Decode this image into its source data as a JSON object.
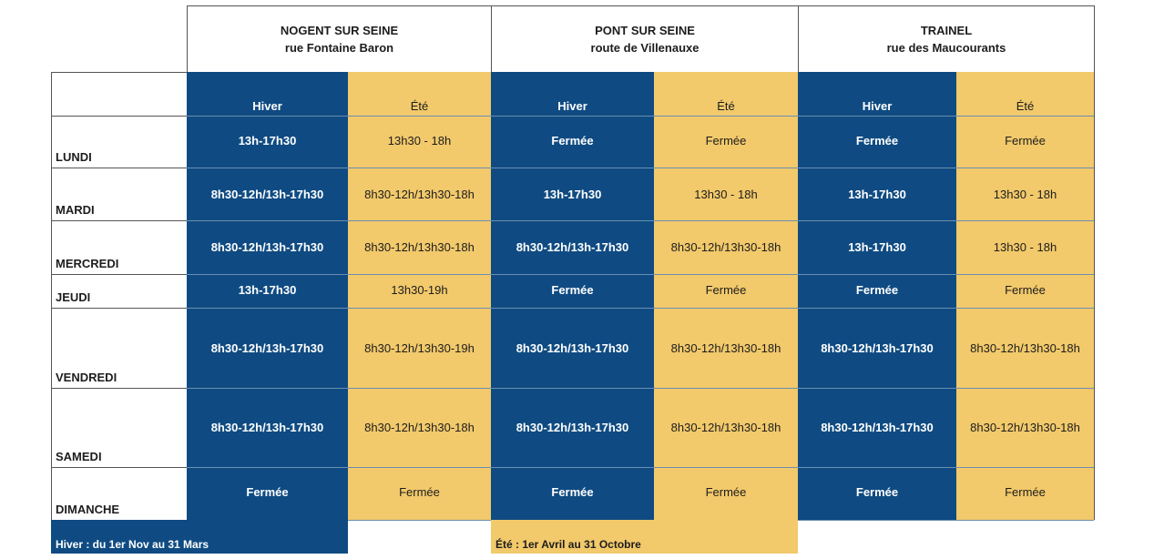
{
  "sites": [
    {
      "name": "NOGENT SUR SEINE",
      "street": "rue Fontaine Baron"
    },
    {
      "name": "PONT SUR SEINE",
      "street": "route de Villenauxe"
    },
    {
      "name": "TRAINEL",
      "street": "rue des Maucourants"
    }
  ],
  "season_labels": {
    "winter": "Hiver",
    "summer": "Été"
  },
  "days": [
    {
      "name": "LUNDI",
      "hours": [
        "13h-17h30",
        "13h30 - 18h",
        "Fermée",
        "Fermée",
        "Fermée",
        "Fermée"
      ]
    },
    {
      "name": "MARDI",
      "hours": [
        "8h30-12h/13h-17h30",
        "8h30-12h/13h30-18h",
        "13h-17h30",
        "13h30 - 18h",
        "13h-17h30",
        "13h30 - 18h"
      ]
    },
    {
      "name": "MERCREDI",
      "hours": [
        "8h30-12h/13h-17h30",
        "8h30-12h/13h30-18h",
        "8h30-12h/13h-17h30",
        "8h30-12h/13h30-18h",
        "13h-17h30",
        "13h30 - 18h"
      ]
    },
    {
      "name": "JEUDI",
      "hours": [
        "13h-17h30",
        "13h30-19h",
        "Fermée",
        "Fermée",
        "Fermée",
        "Fermée"
      ]
    },
    {
      "name": "VENDREDI",
      "hours": [
        "8h30-12h/13h-17h30",
        "8h30-12h/13h30-19h",
        "8h30-12h/13h-17h30",
        "8h30-12h/13h30-18h",
        "8h30-12h/13h-17h30",
        "8h30-12h/13h30-18h"
      ]
    },
    {
      "name": "SAMEDI",
      "hours": [
        "8h30-12h/13h-17h30",
        "8h30-12h/13h30-18h",
        "8h30-12h/13h-17h30",
        "8h30-12h/13h30-18h",
        "8h30-12h/13h-17h30",
        "8h30-12h/13h30-18h"
      ]
    },
    {
      "name": "DIMANCHE",
      "hours": [
        "Fermée",
        "Fermée",
        "Fermée",
        "Fermée",
        "Fermée",
        "Fermée"
      ]
    }
  ],
  "legend": {
    "winter": "Hiver : du 1er Nov au 31 Mars",
    "summer": "Été : 1er Avril au 31 Octobre"
  },
  "colors": {
    "winter": "#0f4b82",
    "summer": "#f2c96b"
  }
}
